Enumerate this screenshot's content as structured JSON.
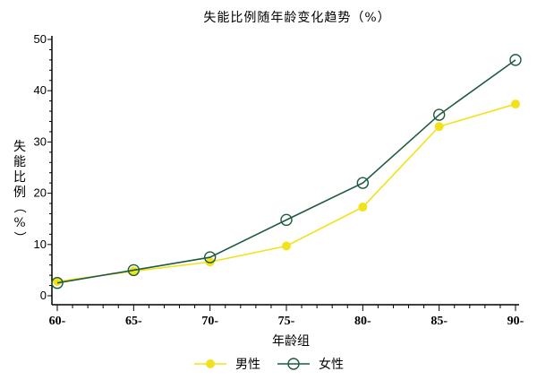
{
  "chart_data": {
    "type": "line",
    "title": "失能比例随年龄变化趋势（%）",
    "xlabel": "年龄组",
    "ylabel": "失能比例（%）",
    "categories": [
      "60-",
      "65-",
      "70-",
      "75-",
      "80-",
      "85-",
      "90-"
    ],
    "ylim": [
      0,
      50
    ],
    "yticks": [
      0,
      10,
      20,
      30,
      40,
      50
    ],
    "grid": false,
    "legend_position": "bottom-center",
    "series": [
      {
        "name": "男性",
        "color": "#f2e21b",
        "marker": "filled-circle",
        "values": [
          2.8,
          4.8,
          6.6,
          9.7,
          17.3,
          33.0,
          37.4
        ]
      },
      {
        "name": "女性",
        "color": "#1d5c3c",
        "marker": "open-circle",
        "values": [
          2.5,
          5.0,
          7.5,
          14.8,
          22.0,
          35.3,
          46.0
        ]
      }
    ]
  }
}
